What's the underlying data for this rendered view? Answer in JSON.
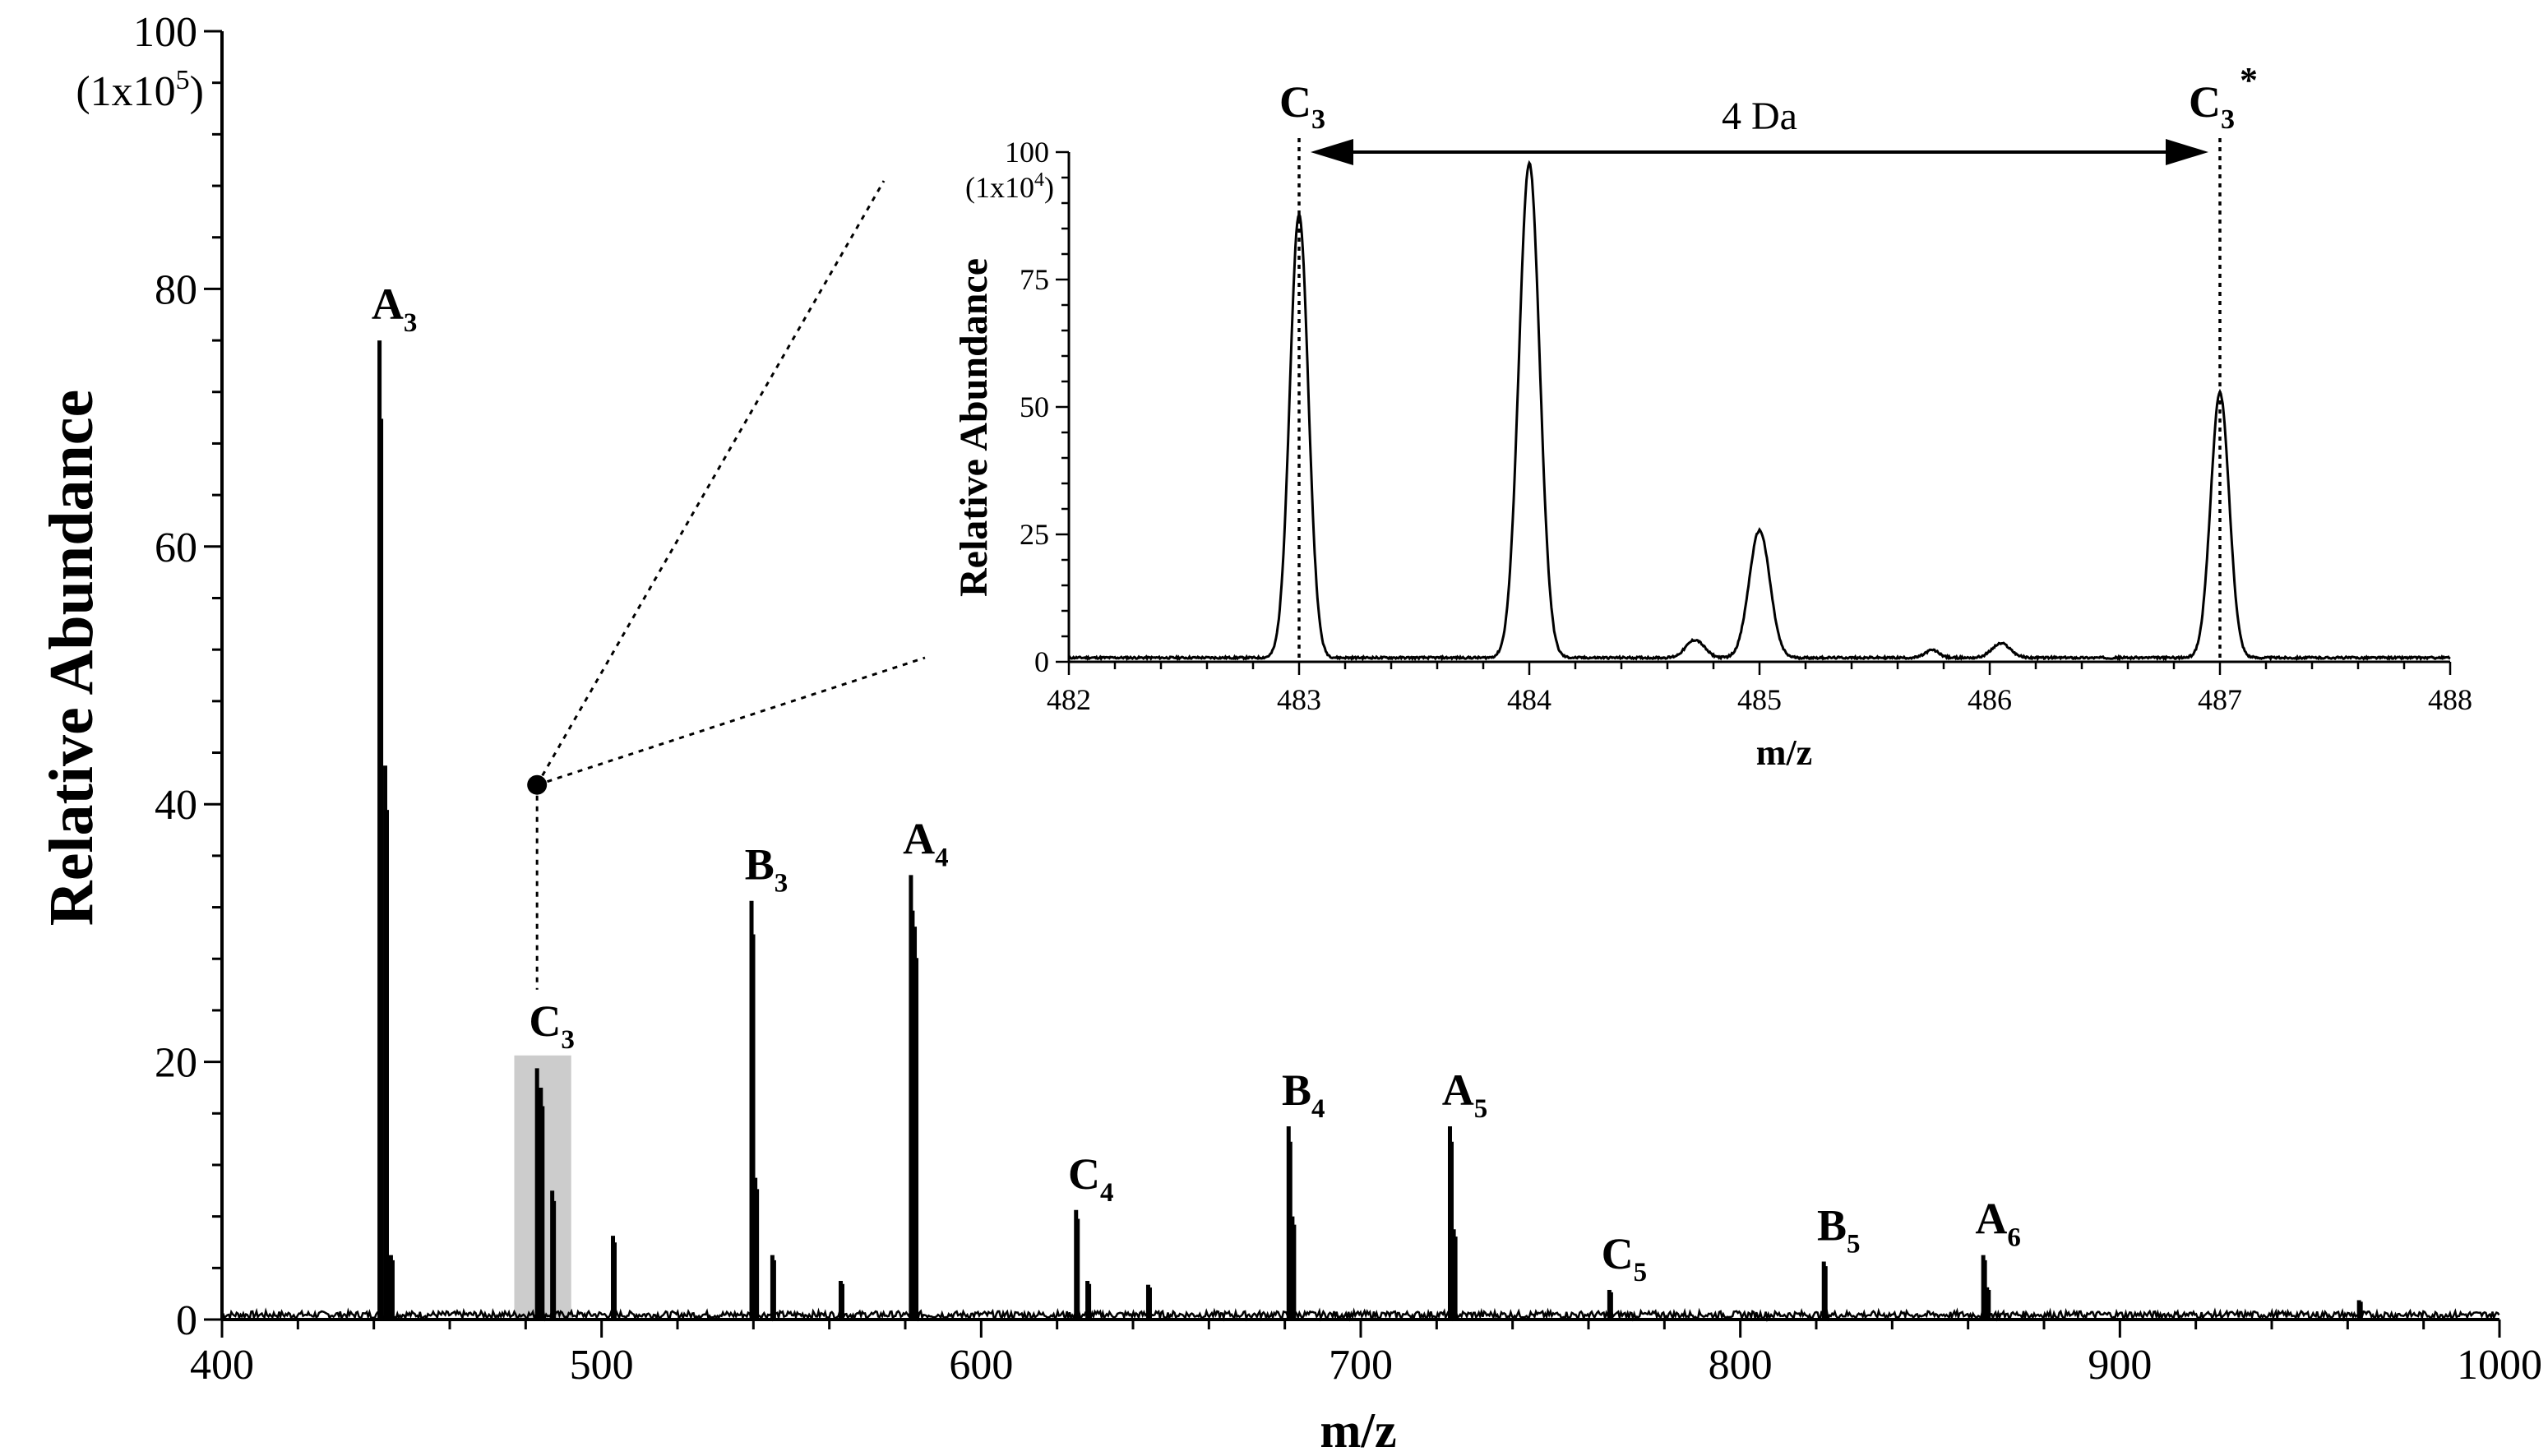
{
  "chart_data": [
    {
      "id": "main",
      "type": "line",
      "subtype": "mass-spectrum",
      "xlabel": "m/z",
      "ylabel": "Relative Abundance",
      "y_multiplier_label": "(1x10",
      "y_multiplier_exp": "5",
      "y_multiplier_close": ")",
      "xlim": [
        400,
        1000
      ],
      "ylim": [
        0,
        100
      ],
      "x_ticks": [
        400,
        500,
        600,
        700,
        800,
        900,
        1000
      ],
      "y_ticks": [
        0,
        20,
        40,
        60,
        80,
        100
      ],
      "peaks": [
        {
          "mz": 441.5,
          "abundance": 76,
          "label": "A",
          "sub": "3"
        },
        {
          "mz": 443.0,
          "abundance": 43
        },
        {
          "mz": 444.5,
          "abundance": 5
        },
        {
          "mz": 483.0,
          "abundance": 19.5,
          "label": "C",
          "sub": "3"
        },
        {
          "mz": 484.0,
          "abundance": 18
        },
        {
          "mz": 487.0,
          "abundance": 10
        },
        {
          "mz": 503.0,
          "abundance": 6.5
        },
        {
          "mz": 539.5,
          "abundance": 32.5,
          "label": "B",
          "sub": "3"
        },
        {
          "mz": 540.5,
          "abundance": 11
        },
        {
          "mz": 545.0,
          "abundance": 5
        },
        {
          "mz": 563.0,
          "abundance": 3
        },
        {
          "mz": 581.5,
          "abundance": 34.5,
          "label": "A",
          "sub": "4"
        },
        {
          "mz": 582.5,
          "abundance": 30.5
        },
        {
          "mz": 625.0,
          "abundance": 8.5,
          "label": "C",
          "sub": "4"
        },
        {
          "mz": 628.0,
          "abundance": 3
        },
        {
          "mz": 644.0,
          "abundance": 2.7
        },
        {
          "mz": 681.0,
          "abundance": 15,
          "label": "B",
          "sub": "4"
        },
        {
          "mz": 682.0,
          "abundance": 8
        },
        {
          "mz": 723.5,
          "abundance": 15,
          "label": "A",
          "sub": "5"
        },
        {
          "mz": 724.5,
          "abundance": 7
        },
        {
          "mz": 765.5,
          "abundance": 2.3,
          "label": "C",
          "sub": "5"
        },
        {
          "mz": 822.0,
          "abundance": 4.5,
          "label": "B",
          "sub": "5"
        },
        {
          "mz": 864.0,
          "abundance": 5,
          "label": "A",
          "sub": "6"
        },
        {
          "mz": 865.0,
          "abundance": 2.5
        },
        {
          "mz": 963.0,
          "abundance": 1.5
        }
      ],
      "highlight": {
        "xmin": 477,
        "xmax": 492,
        "ymax": 20.5,
        "color": "#cccccc"
      },
      "zoom_marker": {
        "mz": 483,
        "abundance": 41.5
      }
    },
    {
      "id": "inset",
      "type": "line",
      "subtype": "mass-spectrum-zoom",
      "xlabel": "m/z",
      "ylabel": "Relative Abundance",
      "y_multiplier_label": "(1x10",
      "y_multiplier_exp": "4",
      "y_multiplier_close": ")",
      "xlim": [
        482,
        488
      ],
      "ylim": [
        0,
        100
      ],
      "x_ticks": [
        482,
        483,
        484,
        485,
        486,
        487,
        488
      ],
      "y_ticks": [
        0,
        25,
        50,
        75,
        100
      ],
      "baseline": 0.8,
      "peaks": [
        {
          "mz": 483.0,
          "abundance": 87,
          "width": 0.04
        },
        {
          "mz": 484.0,
          "abundance": 97,
          "width": 0.045
        },
        {
          "mz": 484.72,
          "abundance": 3.5,
          "width": 0.04
        },
        {
          "mz": 485.0,
          "abundance": 25,
          "width": 0.045
        },
        {
          "mz": 485.75,
          "abundance": 1.5,
          "width": 0.03
        },
        {
          "mz": 486.05,
          "abundance": 2.8,
          "width": 0.04
        },
        {
          "mz": 487.0,
          "abundance": 52,
          "width": 0.04
        }
      ],
      "markers": [
        {
          "mz": 483.0,
          "label": "C",
          "sub": "3",
          "sup": ""
        },
        {
          "mz": 487.0,
          "label": "C",
          "sub": "3",
          "sup": "*"
        }
      ],
      "span_label": "4 Da"
    }
  ]
}
